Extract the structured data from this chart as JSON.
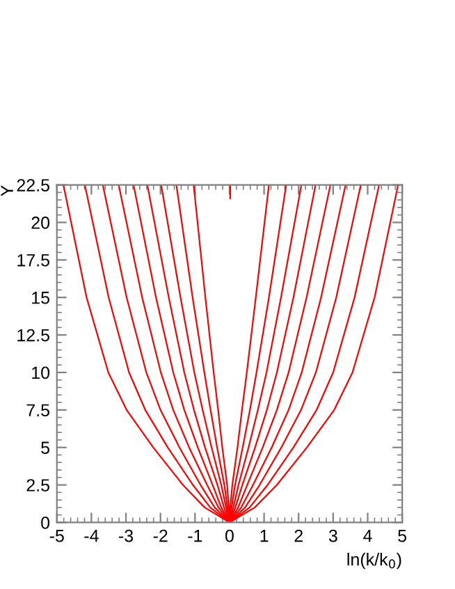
{
  "chart_data": {
    "type": "line",
    "xlabel": "ln(k/k$_{0}$)",
    "ylabel": "Y",
    "xlim": [
      -5,
      5
    ],
    "ylim": [
      0,
      22.5
    ],
    "xticks": [
      -5,
      -4,
      -3,
      -2,
      -1,
      0,
      1,
      2,
      3,
      4,
      5
    ],
    "yticks": [
      0,
      2.5,
      5,
      7.5,
      10,
      12.5,
      15,
      17.5,
      20,
      22.5
    ],
    "grid": false,
    "legend": false,
    "series": [
      {
        "color": "#ff0000",
        "x": [
          0,
          -0.02,
          -0.07,
          -0.21,
          -0.33,
          -0.46,
          -0.7,
          -1.04
        ],
        "values": [
          0,
          1,
          2.5,
          5,
          7.5,
          10,
          15,
          22.5
        ]
      },
      {
        "color": "#ff0000",
        "x": [
          0,
          -0.06,
          -0.15,
          -0.36,
          -0.55,
          -0.73,
          -1.07,
          -1.54
        ],
        "values": [
          0,
          1,
          2.5,
          5,
          7.5,
          10,
          15,
          22.5
        ]
      },
      {
        "color": "#ff0000",
        "x": [
          0,
          -0.1,
          -0.24,
          -0.52,
          -0.78,
          -1.02,
          -1.42,
          -1.98
        ],
        "values": [
          0,
          1,
          2.5,
          5,
          7.5,
          10,
          15,
          22.5
        ]
      },
      {
        "color": "#ff0000",
        "x": [
          0,
          -0.16,
          -0.35,
          -0.71,
          -1.03,
          -1.31,
          -1.76,
          -2.38
        ],
        "values": [
          0,
          1,
          2.5,
          5,
          7.5,
          10,
          15,
          22.5
        ]
      },
      {
        "color": "#ff0000",
        "x": [
          0,
          -0.24,
          -0.49,
          -0.92,
          -1.31,
          -1.63,
          -2.13,
          -2.78
        ],
        "values": [
          0,
          1,
          2.5,
          5,
          7.5,
          10,
          15,
          22.5
        ]
      },
      {
        "color": "#ff0000",
        "x": [
          0,
          -0.32,
          -0.65,
          -1.17,
          -1.63,
          -1.99,
          -2.53,
          -3.21
        ],
        "values": [
          0,
          1,
          2.5,
          5,
          7.5,
          10,
          15,
          22.5
        ]
      },
      {
        "color": "#ff0000",
        "x": [
          0,
          -0.43,
          -0.84,
          -1.45,
          -2.0,
          -2.41,
          -2.98,
          -3.67
        ],
        "values": [
          0,
          1,
          2.5,
          5,
          7.5,
          10,
          15,
          22.5
        ]
      },
      {
        "color": "#ff0000",
        "x": [
          0,
          -0.56,
          -1.06,
          -1.79,
          -2.44,
          -2.91,
          -3.5,
          -4.19
        ],
        "values": [
          0,
          1,
          2.5,
          5,
          7.5,
          10,
          15,
          22.5
        ]
      },
      {
        "color": "#ff0000",
        "x": [
          0,
          -0.72,
          -1.35,
          -2.21,
          -2.98,
          -3.51,
          -4.14,
          -4.81
        ],
        "values": [
          0,
          1,
          2.5,
          5,
          7.5,
          10,
          15,
          22.5
        ]
      },
      {
        "color": "#ff0000",
        "x": [
          0,
          0.02,
          0.08,
          0.23,
          0.36,
          0.5,
          0.76,
          1.14
        ],
        "values": [
          0,
          1,
          2.5,
          5,
          7.5,
          10,
          15,
          22.5
        ]
      },
      {
        "color": "#ff0000",
        "x": [
          0,
          0.06,
          0.16,
          0.38,
          0.59,
          0.78,
          1.14,
          1.64
        ],
        "values": [
          0,
          1,
          2.5,
          5,
          7.5,
          10,
          15,
          22.5
        ]
      },
      {
        "color": "#ff0000",
        "x": [
          0,
          0.11,
          0.26,
          0.55,
          0.82,
          1.07,
          1.49,
          2.08
        ],
        "values": [
          0,
          1,
          2.5,
          5,
          7.5,
          10,
          15,
          22.5
        ]
      },
      {
        "color": "#ff0000",
        "x": [
          0,
          0.17,
          0.37,
          0.74,
          1.08,
          1.37,
          1.85,
          2.49
        ],
        "values": [
          0,
          1,
          2.5,
          5,
          7.5,
          10,
          15,
          22.5
        ]
      },
      {
        "color": "#ff0000",
        "x": [
          0,
          0.25,
          0.51,
          0.96,
          1.37,
          1.71,
          2.23,
          2.92
        ],
        "values": [
          0,
          1,
          2.5,
          5,
          7.5,
          10,
          15,
          22.5
        ]
      },
      {
        "color": "#ff0000",
        "x": [
          0,
          0.34,
          0.68,
          1.22,
          1.71,
          2.09,
          2.65,
          3.36
        ],
        "values": [
          0,
          1,
          2.5,
          5,
          7.5,
          10,
          15,
          22.5
        ]
      },
      {
        "color": "#ff0000",
        "x": [
          0,
          0.45,
          0.87,
          1.5,
          2.07,
          2.5,
          3.09,
          3.8
        ],
        "values": [
          0,
          1,
          2.5,
          5,
          7.5,
          10,
          15,
          22.5
        ]
      },
      {
        "color": "#ff0000",
        "x": [
          0,
          0.58,
          1.1,
          1.85,
          2.52,
          3.0,
          3.62,
          4.33
        ],
        "values": [
          0,
          1,
          2.5,
          5,
          7.5,
          10,
          15,
          22.5
        ]
      },
      {
        "color": "#ff0000",
        "x": [
          0,
          0.73,
          1.37,
          2.24,
          3.03,
          3.56,
          4.2,
          4.88
        ],
        "values": [
          0,
          1,
          2.5,
          5,
          7.5,
          10,
          15,
          22.5
        ]
      },
      {
        "color": "#ff0000",
        "x": [
          0.02,
          0.02
        ],
        "values": [
          21.6,
          22.5
        ]
      }
    ]
  }
}
